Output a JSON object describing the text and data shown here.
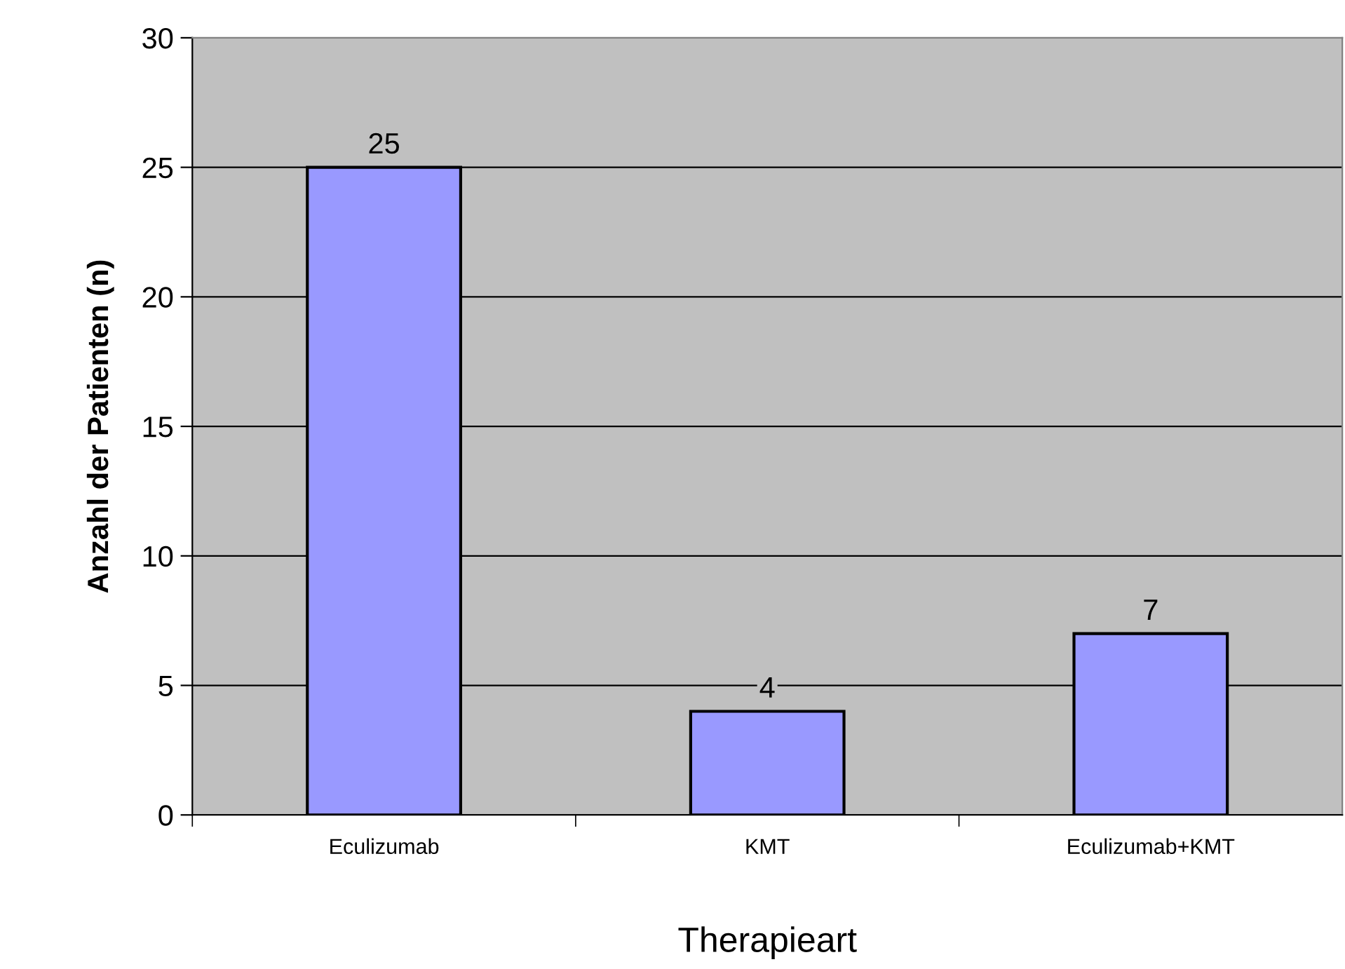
{
  "chart_data": {
    "type": "bar",
    "xlabel": "Therapieart",
    "ylabel": "Anzahl der Patienten (n)",
    "categories": [
      "Eculizumab",
      "KMT",
      "Eculizumab+KMT"
    ],
    "series": [
      {
        "color": "#9999ff",
        "values": [
          25,
          4,
          7
        ]
      }
    ],
    "ylim": [
      0,
      30
    ],
    "yticks": [
      0,
      5,
      10,
      15,
      20,
      25,
      30
    ],
    "grid": "y",
    "data_labels": true
  }
}
